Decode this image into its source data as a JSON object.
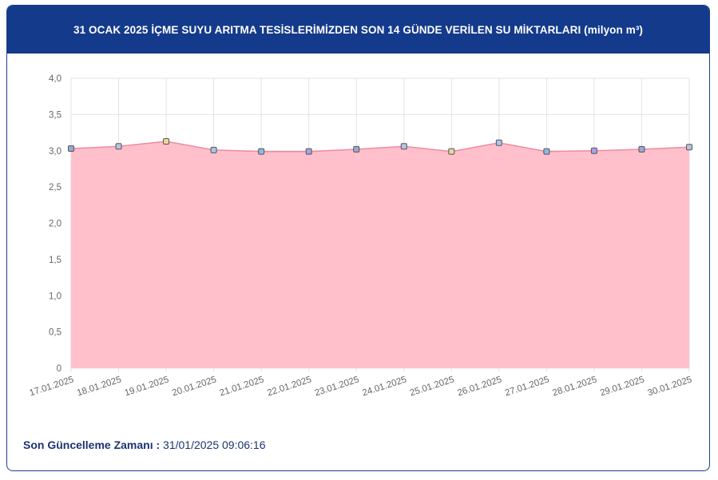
{
  "header": {
    "title": "31 OCAK 2025 İÇME SUYU ARITMA TESİSLERİMİZDEN SON 14 GÜNDE VERİLEN SU MİKTARLARI (milyon m³)"
  },
  "footer": {
    "label": "Son Güncelleme Zamanı :",
    "value": "31/01/2025 09:06:16"
  },
  "colors": {
    "header_bg": "#143a8c",
    "area_fill": "#ffc0cb",
    "line": "#f08aa0",
    "marker_colors": [
      "#9aa7d6",
      "#b9c2e0",
      "#e8d6a0",
      "#a9c6e8",
      "#8fb7e8",
      "#a8a2e0"
    ]
  },
  "chart_data": {
    "type": "area",
    "categories": [
      "17.01.2025",
      "18.01.2025",
      "19.01.2025",
      "20.01.2025",
      "21.01.2025",
      "22.01.2025",
      "23.01.2025",
      "24.01.2025",
      "25.01.2025",
      "26.01.2025",
      "27.01.2025",
      "28.01.2025",
      "29.01.2025",
      "30.01.2025"
    ],
    "values": [
      3.03,
      3.06,
      3.13,
      3.01,
      2.99,
      2.99,
      3.02,
      3.06,
      2.99,
      3.11,
      2.99,
      3.0,
      3.02,
      3.05
    ],
    "ylim": [
      0,
      4
    ],
    "yticks": [
      "0",
      "0,5",
      "1,0",
      "1,5",
      "2,0",
      "2,5",
      "3,0",
      "3,5",
      "4,0"
    ],
    "grid": true
  }
}
